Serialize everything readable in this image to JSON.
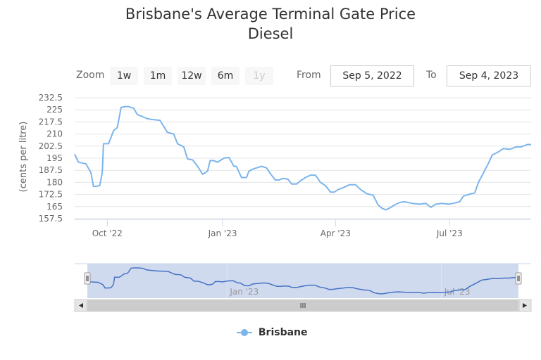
{
  "title_line1": "Brisbane's Average Terminal Gate Price",
  "title_line2": "Diesel",
  "range_selector": {
    "zoom_label": "Zoom",
    "buttons": [
      "1w",
      "1m",
      "12w",
      "6m",
      "1y"
    ],
    "from_label": "From",
    "from_value": "Sep 5, 2022",
    "to_label": "To",
    "to_value": "Sep 4, 2023"
  },
  "navigator": {
    "scrollbar_grip": "III"
  },
  "legend": {
    "series_name": "Brisbane"
  },
  "colors": {
    "series": "#7cb5ec",
    "legend_dot": "#7cb5ec",
    "navigator_mask": "#c8d3ec"
  },
  "chart_data": {
    "type": "line",
    "title": "Brisbane's Average Terminal Gate Price Diesel",
    "ylabel": "(cents per litre)",
    "ylim": [
      157.5,
      232.5
    ],
    "yticks": [
      157.5,
      165,
      172.5,
      180,
      187.5,
      195,
      202.5,
      210,
      217.5,
      225,
      232.5
    ],
    "xlim": [
      "2022-09-05",
      "2023-09-04"
    ],
    "xticks": [
      {
        "date": "2022-10-01",
        "label": "Oct '22"
      },
      {
        "date": "2023-01-01",
        "label": "Jan '23"
      },
      {
        "date": "2023-04-01",
        "label": "Apr '23"
      },
      {
        "date": "2023-07-01",
        "label": "Jul '23"
      }
    ],
    "navigator_xticks": [
      {
        "date": "2023-01-01",
        "label": "Jan '23"
      },
      {
        "date": "2023-07-01",
        "label": "Jul '23"
      }
    ],
    "series": [
      {
        "name": "Brisbane",
        "x": [
          "2022-09-05",
          "2022-09-08",
          "2022-09-14",
          "2022-09-18",
          "2022-09-20",
          "2022-09-22",
          "2022-09-25",
          "2022-09-27",
          "2022-09-28",
          "2022-10-02",
          "2022-10-06",
          "2022-10-09",
          "2022-10-12",
          "2022-10-15",
          "2022-10-18",
          "2022-10-22",
          "2022-10-25",
          "2022-10-30",
          "2022-11-02",
          "2022-11-06",
          "2022-11-12",
          "2022-11-18",
          "2022-11-23",
          "2022-11-26",
          "2022-12-01",
          "2022-12-04",
          "2022-12-08",
          "2022-12-12",
          "2022-12-16",
          "2022-12-20",
          "2022-12-22",
          "2022-12-25",
          "2022-12-28",
          "2023-01-02",
          "2023-01-06",
          "2023-01-10",
          "2023-01-12",
          "2023-01-16",
          "2023-01-20",
          "2023-01-22",
          "2023-01-26",
          "2023-02-01",
          "2023-02-05",
          "2023-02-08",
          "2023-02-12",
          "2023-02-15",
          "2023-02-18",
          "2023-02-22",
          "2023-02-25",
          "2023-03-01",
          "2023-03-04",
          "2023-03-08",
          "2023-03-12",
          "2023-03-16",
          "2023-03-20",
          "2023-03-24",
          "2023-03-28",
          "2023-03-31",
          "2023-04-03",
          "2023-04-08",
          "2023-04-12",
          "2023-04-17",
          "2023-04-21",
          "2023-04-26",
          "2023-05-01",
          "2023-05-05",
          "2023-05-08",
          "2023-05-11",
          "2023-05-14",
          "2023-05-18",
          "2023-05-22",
          "2023-05-26",
          "2023-06-01",
          "2023-06-07",
          "2023-06-12",
          "2023-06-16",
          "2023-06-20",
          "2023-06-25",
          "2023-06-30",
          "2023-07-04",
          "2023-07-09",
          "2023-07-12",
          "2023-07-16",
          "2023-07-21",
          "2023-07-24",
          "2023-07-28",
          "2023-08-01",
          "2023-08-04",
          "2023-08-08",
          "2023-08-13",
          "2023-08-18",
          "2023-08-23",
          "2023-08-27",
          "2023-09-01",
          "2023-09-04"
        ],
        "values": [
          197.5,
          192.5,
          191.5,
          186,
          177.5,
          177.5,
          178,
          186,
          204,
          204,
          212,
          214,
          226.5,
          227,
          227,
          226,
          222,
          220.5,
          219.5,
          219,
          218.5,
          211,
          210,
          204,
          202,
          194.5,
          194,
          190,
          185,
          187,
          193.5,
          193.5,
          192.5,
          195,
          195.5,
          190,
          190,
          183,
          183,
          187,
          188.5,
          190,
          189,
          185.5,
          181.5,
          181.5,
          182.5,
          182,
          179,
          179,
          181,
          183,
          184.5,
          184.5,
          180,
          178,
          174,
          174,
          175.5,
          177,
          178.5,
          178.5,
          175.5,
          173,
          172,
          166,
          164,
          163,
          164,
          166,
          167.5,
          168,
          167,
          166.5,
          167,
          164.5,
          166.5,
          167,
          166.5,
          167,
          168,
          171.5,
          172.5,
          173.5,
          180,
          186,
          192,
          197,
          198.5,
          201,
          200.5,
          202,
          202,
          203.5,
          203.5
        ]
      }
    ]
  }
}
